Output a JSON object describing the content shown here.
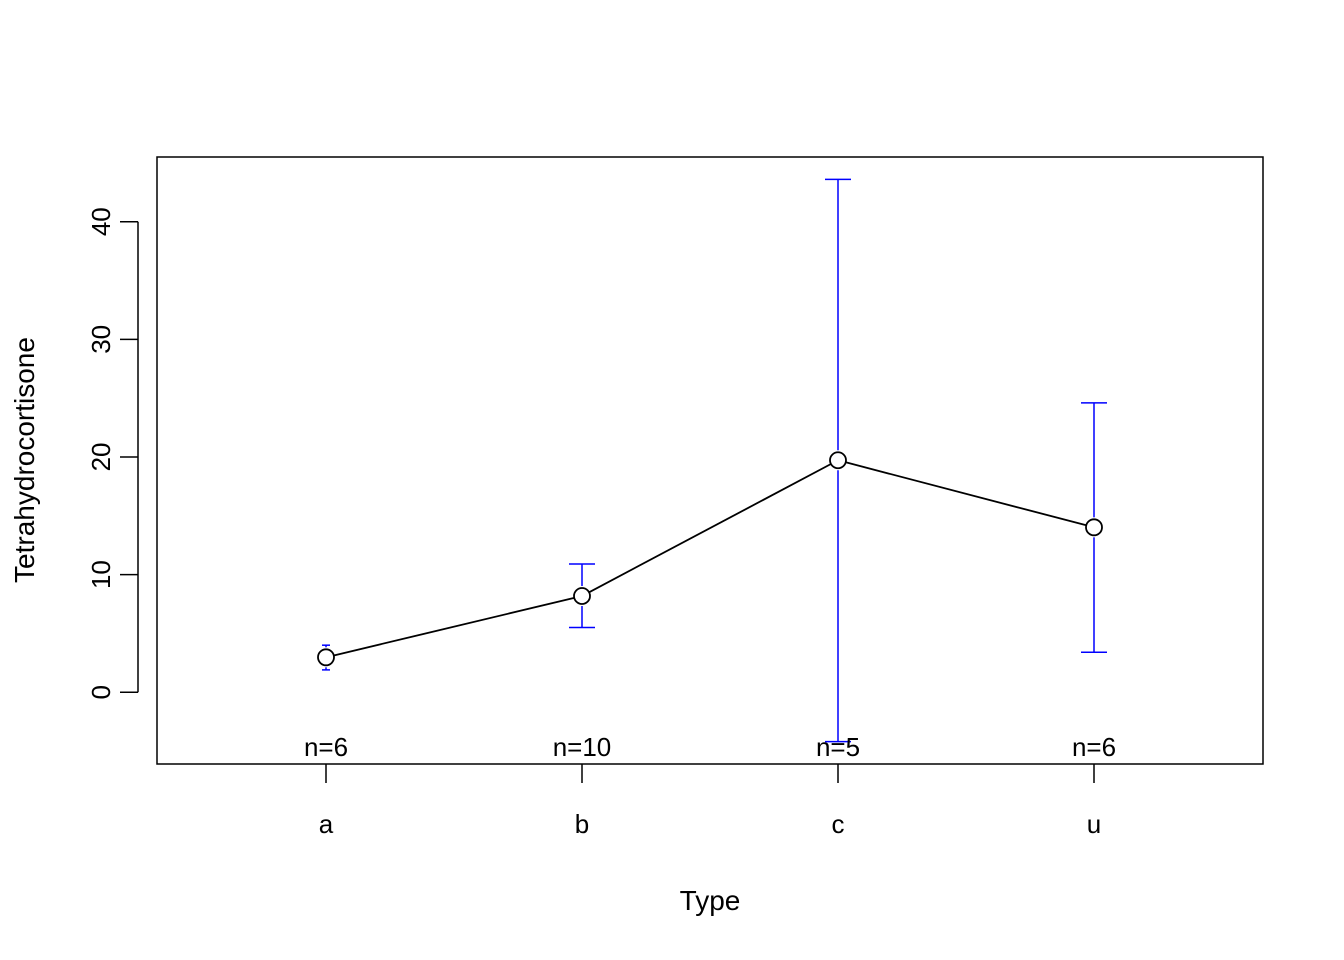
{
  "chart_data": {
    "type": "line",
    "xlabel": "Type",
    "ylabel": "Tetrahydrocortisone",
    "categories": [
      "a",
      "b",
      "c",
      "u"
    ],
    "series": [
      {
        "values": [
          2.97,
          8.18,
          19.72,
          14.02
        ],
        "error_low": [
          1.9,
          5.5,
          -4.2,
          3.4
        ],
        "error_high": [
          4.0,
          10.9,
          43.6,
          24.6
        ],
        "n_labels": [
          "n=6",
          "n=10",
          "n=5",
          "n=6"
        ]
      }
    ],
    "ylim": [
      -6.1,
      45.5
    ],
    "yticks": [
      0,
      10,
      20,
      30,
      40
    ],
    "grid": false,
    "legend": "none",
    "colors": {
      "line": "#000000",
      "error_bars": "#0000ff",
      "frame": "#000000"
    }
  }
}
